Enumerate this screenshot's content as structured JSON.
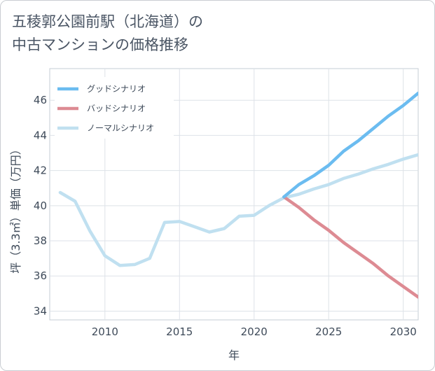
{
  "page": {
    "title_line1": "五稜郭公園前駅（北海道）の",
    "title_line2": "中古マンションの価格推移"
  },
  "chart_data": {
    "type": "line",
    "title": "五稜郭公園前駅（北海道）の中古マンションの価格推移",
    "xlabel": "年",
    "ylabel": "坪（3.3㎡）単価（万円）",
    "xlim": [
      2006.3,
      2031.0
    ],
    "ylim": [
      33.5,
      47.8
    ],
    "xticks": [
      2010,
      2015,
      2020,
      2025,
      2030
    ],
    "yticks": [
      34,
      36,
      38,
      40,
      42,
      44,
      46
    ],
    "grid": true,
    "legend_position": "top-left",
    "series": [
      {
        "name": "グッドシナリオ",
        "color": "#6bbcf0",
        "x": [
          2022,
          2023,
          2024,
          2025,
          2026,
          2027,
          2028,
          2029,
          2030,
          2031
        ],
        "y": [
          40.5,
          41.2,
          41.7,
          42.3,
          43.1,
          43.7,
          44.4,
          45.1,
          45.7,
          46.4
        ]
      },
      {
        "name": "バッドシナリオ",
        "color": "#dd8b93",
        "x": [
          2022,
          2023,
          2024,
          2025,
          2026,
          2027,
          2028,
          2029,
          2030,
          2031
        ],
        "y": [
          40.5,
          39.9,
          39.2,
          38.6,
          37.9,
          37.3,
          36.7,
          36.0,
          35.4,
          34.8
        ]
      },
      {
        "name": "ノーマルシナリオ",
        "color": "#c0e0f0",
        "x": [
          2007,
          2008,
          2009,
          2010,
          2011,
          2012,
          2013,
          2014,
          2015,
          2016,
          2017,
          2018,
          2019,
          2020,
          2021,
          2022,
          2023,
          2024,
          2025,
          2026,
          2027,
          2028,
          2029,
          2030,
          2031
        ],
        "y": [
          40.75,
          40.25,
          38.55,
          37.15,
          36.6,
          36.65,
          37.0,
          39.05,
          39.1,
          38.8,
          38.5,
          38.7,
          39.4,
          39.45,
          40.0,
          40.45,
          40.65,
          40.95,
          41.2,
          41.55,
          41.8,
          42.1,
          42.35,
          42.65,
          42.9
        ]
      }
    ]
  }
}
